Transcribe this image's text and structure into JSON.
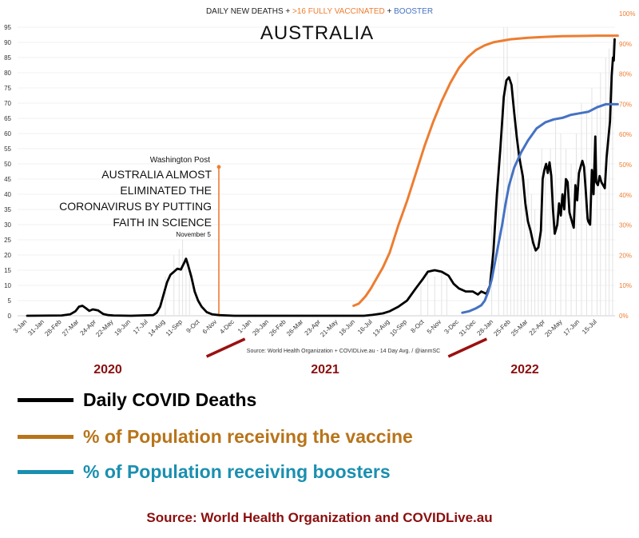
{
  "chart_data": {
    "type": "line",
    "header": "DAILY NEW DEATHS + >16 FULLY VACCINATED + BOOSTER",
    "header_parts": [
      {
        "text": "DAILY NEW DEATHS",
        "color": "#222222"
      },
      {
        "text": " + ",
        "color": "#222222"
      },
      {
        "text": ">16 FULLY VACCINATED",
        "color": "#ed7d31"
      },
      {
        "text": " + ",
        "color": "#222222"
      },
      {
        "text": "BOOSTER",
        "color": "#4472c4"
      }
    ],
    "title": "AUSTRALIA",
    "subtitle_source": "Source: World Health Organization + COVIDLive.au - 14 Day Avg. / @ianmSC",
    "y_left": {
      "min": 0,
      "max": 95,
      "ticks": [
        0,
        5,
        10,
        15,
        20,
        25,
        30,
        35,
        40,
        45,
        50,
        55,
        60,
        65,
        70,
        75,
        80,
        85,
        90,
        95
      ]
    },
    "y_right": {
      "min": 0,
      "max": 100,
      "ticks": [
        "0%",
        "10%",
        "20%",
        "30%",
        "40%",
        "50%",
        "60%",
        "70%",
        "80%",
        "90%",
        "100%"
      ]
    },
    "x_ticks": [
      "3-Jan",
      "31-Jan",
      "28-Feb",
      "27-Mar",
      "24-Apr",
      "22-May",
      "19-Jun",
      "17-Jul",
      "14-Aug",
      "11-Sep",
      "9-Oct",
      "6-Nov",
      "4-Dec",
      "1-Jan",
      "29-Jan",
      "26-Feb",
      "26-Mar",
      "23-Apr",
      "21-May",
      "18-Jun",
      "16-Jul",
      "13-Aug",
      "10-Sep",
      "8-Oct",
      "5-Nov",
      "3-Dec",
      "31-Dec",
      "28-Jan",
      "25-Feb",
      "25-Mar",
      "22-Apr",
      "20-May",
      "17-Jun",
      "15-Jul"
    ],
    "year_labels": [
      "2020",
      "2021",
      "2022"
    ],
    "year_label_color": "#8b0e0e",
    "year_dividers_after_tick": [
      11.5,
      25.5
    ],
    "annotation": {
      "source": "Washington Post",
      "lines": [
        "AUSTRALIA ALMOST",
        "ELIMINATED THE",
        "CORONAVIRUS BY PUTTING",
        "FAITH IN SCIENCE"
      ],
      "date": "November 5",
      "x_tick_index": 11.1,
      "y_value": 49
    },
    "series": [
      {
        "name": "Daily COVID Deaths",
        "axis": "left",
        "color": "#000000",
        "points": [
          [
            0,
            0
          ],
          [
            2,
            0.1
          ],
          [
            2.5,
            0.5
          ],
          [
            2.8,
            1.5
          ],
          [
            3.0,
            3
          ],
          [
            3.2,
            3.3
          ],
          [
            3.4,
            2.5
          ],
          [
            3.6,
            1.6
          ],
          [
            3.8,
            2.1
          ],
          [
            4.1,
            1.8
          ],
          [
            4.4,
            0.6
          ],
          [
            4.7,
            0.2
          ],
          [
            5,
            0.1
          ],
          [
            6,
            0
          ],
          [
            7.3,
            0.2
          ],
          [
            7.5,
            1
          ],
          [
            7.7,
            3
          ],
          [
            7.9,
            7
          ],
          [
            8.1,
            11
          ],
          [
            8.3,
            13.5
          ],
          [
            8.5,
            14.5
          ],
          [
            8.7,
            15.5
          ],
          [
            8.9,
            15.2
          ],
          [
            9.1,
            17.5
          ],
          [
            9.2,
            18.8
          ],
          [
            9.3,
            17
          ],
          [
            9.5,
            13
          ],
          [
            9.7,
            8
          ],
          [
            9.9,
            5
          ],
          [
            10.1,
            3
          ],
          [
            10.4,
            1.2
          ],
          [
            10.7,
            0.5
          ],
          [
            11.1,
            0.2
          ],
          [
            12,
            0
          ],
          [
            19.5,
            0
          ],
          [
            20,
            0.3
          ],
          [
            20.6,
            0.8
          ],
          [
            21,
            1.5
          ],
          [
            21.5,
            3
          ],
          [
            22,
            5
          ],
          [
            22.5,
            9
          ],
          [
            22.9,
            12
          ],
          [
            23.2,
            14.5
          ],
          [
            23.6,
            15
          ],
          [
            24,
            14.5
          ],
          [
            24.4,
            13.2
          ],
          [
            24.7,
            10.5
          ],
          [
            25,
            9
          ],
          [
            25.4,
            8
          ],
          [
            25.8,
            8
          ],
          [
            26.1,
            7
          ],
          [
            26.3,
            8
          ],
          [
            26.6,
            7.2
          ],
          [
            26.8,
            10
          ],
          [
            27,
            21
          ],
          [
            27.2,
            40
          ],
          [
            27.4,
            55
          ],
          [
            27.6,
            72
          ],
          [
            27.75,
            77.5
          ],
          [
            27.9,
            78.5
          ],
          [
            28.05,
            76
          ],
          [
            28.2,
            67
          ],
          [
            28.35,
            59
          ],
          [
            28.5,
            52
          ],
          [
            28.7,
            46
          ],
          [
            28.85,
            37
          ],
          [
            29.0,
            31
          ],
          [
            29.15,
            28
          ],
          [
            29.3,
            24
          ],
          [
            29.45,
            21.5
          ],
          [
            29.6,
            22.5
          ],
          [
            29.75,
            28
          ],
          [
            29.85,
            45
          ],
          [
            29.95,
            48
          ],
          [
            30.05,
            50
          ],
          [
            30.15,
            47
          ],
          [
            30.25,
            50.5
          ],
          [
            30.35,
            46
          ],
          [
            30.45,
            35
          ],
          [
            30.55,
            27
          ],
          [
            30.6,
            28
          ],
          [
            30.7,
            30
          ],
          [
            30.8,
            37
          ],
          [
            30.9,
            33
          ],
          [
            31.0,
            40
          ],
          [
            31.1,
            35
          ],
          [
            31.2,
            45
          ],
          [
            31.3,
            44
          ],
          [
            31.4,
            34
          ],
          [
            31.55,
            31
          ],
          [
            31.65,
            29
          ],
          [
            31.75,
            43
          ],
          [
            31.85,
            38
          ],
          [
            31.95,
            47
          ],
          [
            32.05,
            49
          ],
          [
            32.15,
            51
          ],
          [
            32.25,
            49
          ],
          [
            32.35,
            41
          ],
          [
            32.45,
            32
          ],
          [
            32.5,
            31
          ],
          [
            32.6,
            30
          ],
          [
            32.7,
            48
          ],
          [
            32.8,
            40
          ],
          [
            32.9,
            59
          ],
          [
            32.95,
            44
          ],
          [
            33.05,
            43
          ],
          [
            33.15,
            46
          ],
          [
            33.25,
            44
          ],
          [
            33.35,
            43
          ],
          [
            33.45,
            42
          ],
          [
            33.55,
            52
          ],
          [
            33.65,
            58
          ],
          [
            33.75,
            64
          ],
          [
            33.85,
            79
          ],
          [
            33.92,
            85
          ],
          [
            33.97,
            84
          ],
          [
            34.02,
            91
          ]
        ]
      },
      {
        "name": "% of Population receiving the vaccine",
        "axis": "right",
        "color": "#ed7d31",
        "points": [
          [
            18.9,
            3.3
          ],
          [
            19.2,
            4
          ],
          [
            19.4,
            5.2
          ],
          [
            19.6,
            6.5
          ],
          [
            19.9,
            9
          ],
          [
            20.2,
            12
          ],
          [
            20.6,
            16
          ],
          [
            21,
            21
          ],
          [
            21.5,
            30
          ],
          [
            22,
            38
          ],
          [
            22.5,
            47
          ],
          [
            23,
            56
          ],
          [
            23.5,
            64
          ],
          [
            24,
            71
          ],
          [
            24.5,
            77
          ],
          [
            25,
            82
          ],
          [
            25.5,
            85.5
          ],
          [
            26,
            88
          ],
          [
            26.5,
            89.5
          ],
          [
            27,
            90.5
          ],
          [
            28,
            91.5
          ],
          [
            29,
            92
          ],
          [
            30,
            92.3
          ],
          [
            31,
            92.5
          ],
          [
            32,
            92.6
          ],
          [
            33,
            92.7
          ],
          [
            34,
            92.7
          ],
          [
            34.2,
            92.7
          ]
        ]
      },
      {
        "name": "% of Population receiving boosters",
        "axis": "right",
        "color": "#4472c4",
        "points": [
          [
            25.2,
            1
          ],
          [
            25.6,
            1.5
          ],
          [
            26,
            2.5
          ],
          [
            26.3,
            3.5
          ],
          [
            26.5,
            5
          ],
          [
            26.7,
            8
          ],
          [
            26.9,
            12
          ],
          [
            27.1,
            18
          ],
          [
            27.3,
            24
          ],
          [
            27.5,
            30
          ],
          [
            27.7,
            37
          ],
          [
            27.9,
            43
          ],
          [
            28.2,
            49
          ],
          [
            28.6,
            54
          ],
          [
            29,
            58
          ],
          [
            29.5,
            62
          ],
          [
            30,
            64
          ],
          [
            30.5,
            65
          ],
          [
            31,
            65.5
          ],
          [
            31.5,
            66.5
          ],
          [
            32,
            67
          ],
          [
            32.5,
            67.5
          ],
          [
            33,
            69
          ],
          [
            33.5,
            70
          ],
          [
            34.2,
            70
          ]
        ]
      }
    ],
    "daily_bars": [
      [
        26.9,
        30
      ],
      [
        27.3,
        50
      ],
      [
        27.6,
        95
      ],
      [
        27.8,
        95
      ],
      [
        28.0,
        62
      ],
      [
        28.2,
        60
      ],
      [
        28.4,
        80
      ],
      [
        28.6,
        55
      ],
      [
        28.8,
        45
      ],
      [
        29.0,
        45
      ],
      [
        29.2,
        40
      ],
      [
        29.4,
        35
      ],
      [
        29.6,
        25
      ],
      [
        29.8,
        55
      ],
      [
        30.0,
        50
      ],
      [
        30.3,
        55
      ],
      [
        30.6,
        65
      ],
      [
        30.9,
        60
      ],
      [
        31.2,
        55
      ],
      [
        31.5,
        50
      ],
      [
        31.8,
        60
      ],
      [
        32.1,
        70
      ],
      [
        32.4,
        68
      ],
      [
        32.7,
        75
      ],
      [
        33.0,
        70
      ],
      [
        33.2,
        80
      ],
      [
        33.5,
        85
      ],
      [
        33.7,
        88
      ],
      [
        33.9,
        92
      ],
      [
        8.5,
        20
      ],
      [
        8.8,
        22
      ],
      [
        9.0,
        25
      ],
      [
        9.2,
        19
      ],
      [
        9.4,
        15
      ],
      [
        8.0,
        13
      ],
      [
        22.8,
        10
      ],
      [
        23.2,
        15
      ],
      [
        23.6,
        13
      ],
      [
        24.0,
        14
      ],
      [
        24.3,
        12
      ]
    ]
  },
  "legend": [
    {
      "label": "Daily COVID Deaths",
      "color": "#000000"
    },
    {
      "label": "% of Population receiving the vaccine",
      "color": "#b8741a"
    },
    {
      "label": "% of Population receiving boosters",
      "color": "#1a8fb0"
    }
  ],
  "source_line": "Source:  World Health Organization and COVIDLive.au"
}
